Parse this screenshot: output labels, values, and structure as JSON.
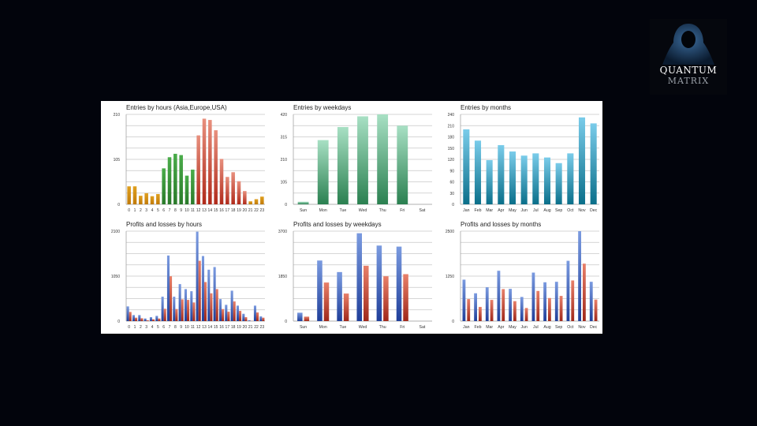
{
  "logo": {
    "line1": "QUANTUM",
    "line2": "MATRIX"
  },
  "chart_data": [
    {
      "id": "entries-hours",
      "type": "bar",
      "title": "Entries by hours (Asia,Europe,USA)",
      "categories": [
        "0",
        "1",
        "2",
        "3",
        "4",
        "5",
        "6",
        "7",
        "8",
        "9",
        "10",
        "11",
        "12",
        "13",
        "14",
        "15",
        "16",
        "17",
        "18",
        "19",
        "20",
        "21",
        "22",
        "23"
      ],
      "values": [
        42,
        42,
        20,
        26,
        19,
        24,
        84,
        110,
        118,
        115,
        67,
        81,
        161,
        200,
        197,
        173,
        106,
        64,
        75,
        54,
        31,
        7,
        12,
        18
      ],
      "bar_colors_by_session": {
        "asia": "#d4900e",
        "europe": "#3f9a3f",
        "usa": "#d2533f"
      },
      "session_of_hour": [
        "asia",
        "asia",
        "asia",
        "asia",
        "asia",
        "asia",
        "europe",
        "europe",
        "europe",
        "europe",
        "europe",
        "europe",
        "usa",
        "usa",
        "usa",
        "usa",
        "usa",
        "usa",
        "usa",
        "usa",
        "usa",
        "asia",
        "asia",
        "asia"
      ],
      "ylim": [
        0,
        210
      ],
      "yticks": [
        "0",
        "105",
        "210"
      ],
      "grid": true
    },
    {
      "id": "entries-weekdays",
      "type": "bar",
      "title": "Entries by weekdays",
      "categories": [
        "Sun",
        "Mon",
        "Tue",
        "Wed",
        "Thu",
        "Fri",
        "Sat"
      ],
      "values": [
        12,
        300,
        361,
        411,
        420,
        367,
        0
      ],
      "color_top": "#a8e0c4",
      "color_bottom": "#2a8050",
      "ylim": [
        0,
        420
      ],
      "yticks": [
        "0",
        "105",
        "210",
        "315",
        "420"
      ],
      "grid": true
    },
    {
      "id": "entries-months",
      "type": "bar",
      "title": "Entries by months",
      "categories": [
        "Jan",
        "Feb",
        "Mar",
        "Apr",
        "May",
        "Jun",
        "Jul",
        "Aug",
        "Sep",
        "Oct",
        "Nov",
        "Dec"
      ],
      "values": [
        200,
        170,
        118,
        158,
        141,
        130,
        136,
        125,
        110,
        136,
        232,
        216
      ],
      "color_top": "#7accea",
      "color_bottom": "#0a6f8a",
      "ylim": [
        0,
        240
      ],
      "yticks": [
        "0",
        "30",
        "60",
        "90",
        "120",
        "150",
        "180",
        "210",
        "240"
      ],
      "grid": true
    },
    {
      "id": "pl-hours",
      "type": "bar",
      "title": "Profits and losses by hours",
      "categories": [
        "0",
        "1",
        "2",
        "3",
        "4",
        "5",
        "6",
        "7",
        "8",
        "9",
        "10",
        "11",
        "12",
        "13",
        "14",
        "15",
        "16",
        "17",
        "18",
        "19",
        "20",
        "21",
        "22",
        "23"
      ],
      "series": [
        {
          "values": [
            343,
            141,
            141,
            61,
            92,
            122,
            570,
            1531,
            570,
            864,
            747,
            698,
            2088,
            1519,
            1200,
            1262,
            514,
            380,
            710,
            361,
            171,
            18,
            361,
            110
          ],
          "color_top": "#7b9be0",
          "color_bottom": "#1f3f9a"
        },
        {
          "values": [
            214,
            80,
            67,
            18,
            43,
            61,
            288,
            1047,
            282,
            508,
            496,
            435,
            1408,
            912,
            649,
            747,
            282,
            220,
            459,
            239,
            92,
            6,
            202,
            80
          ],
          "color_top": "#e8806a",
          "color_bottom": "#a0281a"
        }
      ],
      "ylim": [
        0,
        2100
      ],
      "yticks": [
        "0",
        "1050",
        "2100"
      ],
      "grid": true
    },
    {
      "id": "pl-weekdays",
      "type": "bar",
      "title": "Profits and losses by weekdays",
      "categories": [
        "Sun",
        "Mon",
        "Tue",
        "Wed",
        "Thu",
        "Fri",
        "Sat"
      ],
      "series": [
        {
          "values": [
            345,
            2492,
            2017,
            3614,
            3107,
            3064,
            0
          ],
          "color_top": "#7b9be0",
          "color_bottom": "#1f3f9a"
        },
        {
          "values": [
            183,
            1586,
            1133,
            2276,
            1845,
            1931,
            0
          ],
          "color_top": "#e8806a",
          "color_bottom": "#a0281a"
        }
      ],
      "ylim": [
        0,
        3700
      ],
      "yticks": [
        "0",
        "1850",
        "3700"
      ],
      "grid": true
    },
    {
      "id": "pl-months",
      "type": "bar",
      "title": "Profits and losses by months",
      "categories": [
        "Jan",
        "Feb",
        "Mar",
        "Apr",
        "May",
        "Jun",
        "Jul",
        "Aug",
        "Sep",
        "Oct",
        "Nov",
        "Dec"
      ],
      "series": [
        {
          "values": [
            1152,
            773,
            940,
            1399,
            896,
            671,
            1348,
            1079,
            1093,
            1676,
            2500,
            1093
          ],
          "color_top": "#7b9be0",
          "color_bottom": "#1f3f9a"
        },
        {
          "values": [
            612,
            394,
            590,
            889,
            554,
            364,
            838,
            641,
            700,
            1130,
            1596,
            598
          ],
          "color_top": "#e8806a",
          "color_bottom": "#a0281a"
        }
      ],
      "ylim": [
        0,
        2500
      ],
      "yticks": [
        "0",
        "1250",
        "2500"
      ],
      "grid": true
    }
  ]
}
